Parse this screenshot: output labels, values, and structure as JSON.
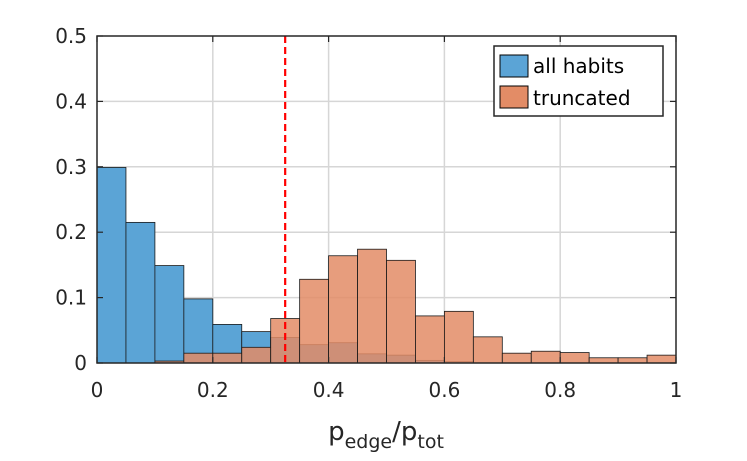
{
  "chart_data": {
    "type": "bar",
    "bin_edges": [
      0,
      0.05,
      0.1,
      0.15,
      0.2,
      0.25,
      0.3,
      0.35,
      0.4,
      0.45,
      0.5,
      0.55,
      0.6,
      0.65,
      0.7,
      0.75,
      0.8,
      0.85,
      0.9,
      0.95,
      1.0
    ],
    "series": [
      {
        "name": "all habits",
        "color": "#5ba4d6",
        "values": [
          0.299,
          0.215,
          0.149,
          0.098,
          0.059,
          0.048,
          0.039,
          0.028,
          0.031,
          0.014,
          0.012,
          0.004,
          0.002,
          0.0,
          0.0,
          0.0,
          0.0,
          0.0,
          0.0,
          0.0
        ]
      },
      {
        "name": "truncated",
        "color": "#e38c66",
        "values": [
          0.0,
          0.0,
          0.003,
          0.015,
          0.015,
          0.024,
          0.068,
          0.128,
          0.164,
          0.174,
          0.157,
          0.072,
          0.079,
          0.04,
          0.015,
          0.018,
          0.016,
          0.008,
          0.008,
          0.012
        ]
      }
    ],
    "reference_line": {
      "x": 0.325,
      "color": "#ff0000",
      "style": "dashed"
    },
    "xlim": [
      0,
      1
    ],
    "ylim": [
      0,
      0.5
    ],
    "xticks": [
      0,
      0.2,
      0.4,
      0.6,
      0.8,
      1
    ],
    "xtick_labels": [
      "0",
      "0.2",
      "0.4",
      "0.6",
      "0.8",
      "1"
    ],
    "yticks": [
      0,
      0.1,
      0.2,
      0.3,
      0.4,
      0.5
    ],
    "ytick_labels": [
      "0",
      "0.1",
      "0.2",
      "0.3",
      "0.4",
      "0.5"
    ],
    "xlabel": {
      "base1": "p",
      "sub1": "edge",
      "slash": "/",
      "base2": "p",
      "sub2": "tot"
    },
    "ylabel": "",
    "grid": true,
    "legend_position": "top-right"
  }
}
